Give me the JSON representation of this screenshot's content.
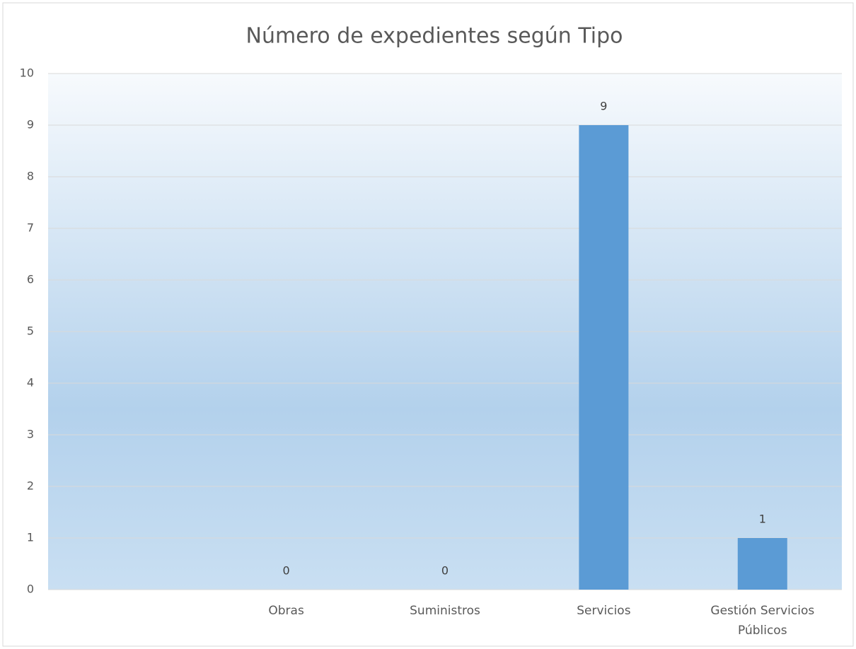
{
  "chart_data": {
    "type": "bar",
    "title": "Número de expedientes según Tipo",
    "categories": [
      null,
      "Obras",
      "Suministros",
      "Servicios",
      "Gestión Servicios Públicos"
    ],
    "values": [
      null,
      0,
      0,
      9,
      1
    ],
    "color": "#5b9bd5",
    "ylim": [
      0,
      10
    ],
    "yticks": [
      0,
      1,
      2,
      3,
      4,
      5,
      6,
      7,
      8,
      9,
      10
    ],
    "grid": true
  }
}
